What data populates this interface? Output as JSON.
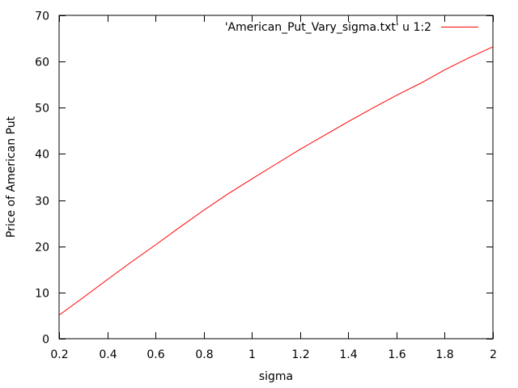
{
  "chart_data": {
    "type": "line",
    "xlabel": "sigma",
    "ylabel": "Price of American Put",
    "xlim": [
      0.2,
      2.0
    ],
    "ylim": [
      0,
      70
    ],
    "xticks": [
      0.2,
      0.4,
      0.6,
      0.8,
      1.0,
      1.2,
      1.4,
      1.6,
      1.8,
      2.0
    ],
    "xtick_labels": [
      "0.2",
      "0.4",
      "0.6",
      "0.8",
      "1",
      "1.2",
      "1.4",
      "1.6",
      "1.8",
      "2"
    ],
    "yticks": [
      0,
      10,
      20,
      30,
      40,
      50,
      60,
      70
    ],
    "ytick_labels": [
      "0",
      "10",
      "20",
      "30",
      "40",
      "50",
      "60",
      "70"
    ],
    "grid": false,
    "legend_position": "top-right",
    "series": [
      {
        "name": "'American_Put_Vary_sigma.txt' u 1:2",
        "color": "#ff0000",
        "x": [
          0.2,
          0.3,
          0.4,
          0.5,
          0.6,
          0.7,
          0.8,
          0.9,
          1.0,
          1.1,
          1.2,
          1.3,
          1.4,
          1.5,
          1.6,
          1.7,
          1.8,
          1.9,
          2.0
        ],
        "y": [
          5.1,
          8.9,
          12.8,
          16.6,
          20.3,
          24.1,
          27.8,
          31.3,
          34.6,
          37.8,
          41.0,
          44.0,
          47.0,
          49.9,
          52.7,
          55.3,
          58.2,
          60.8,
          63.2
        ]
      }
    ]
  }
}
